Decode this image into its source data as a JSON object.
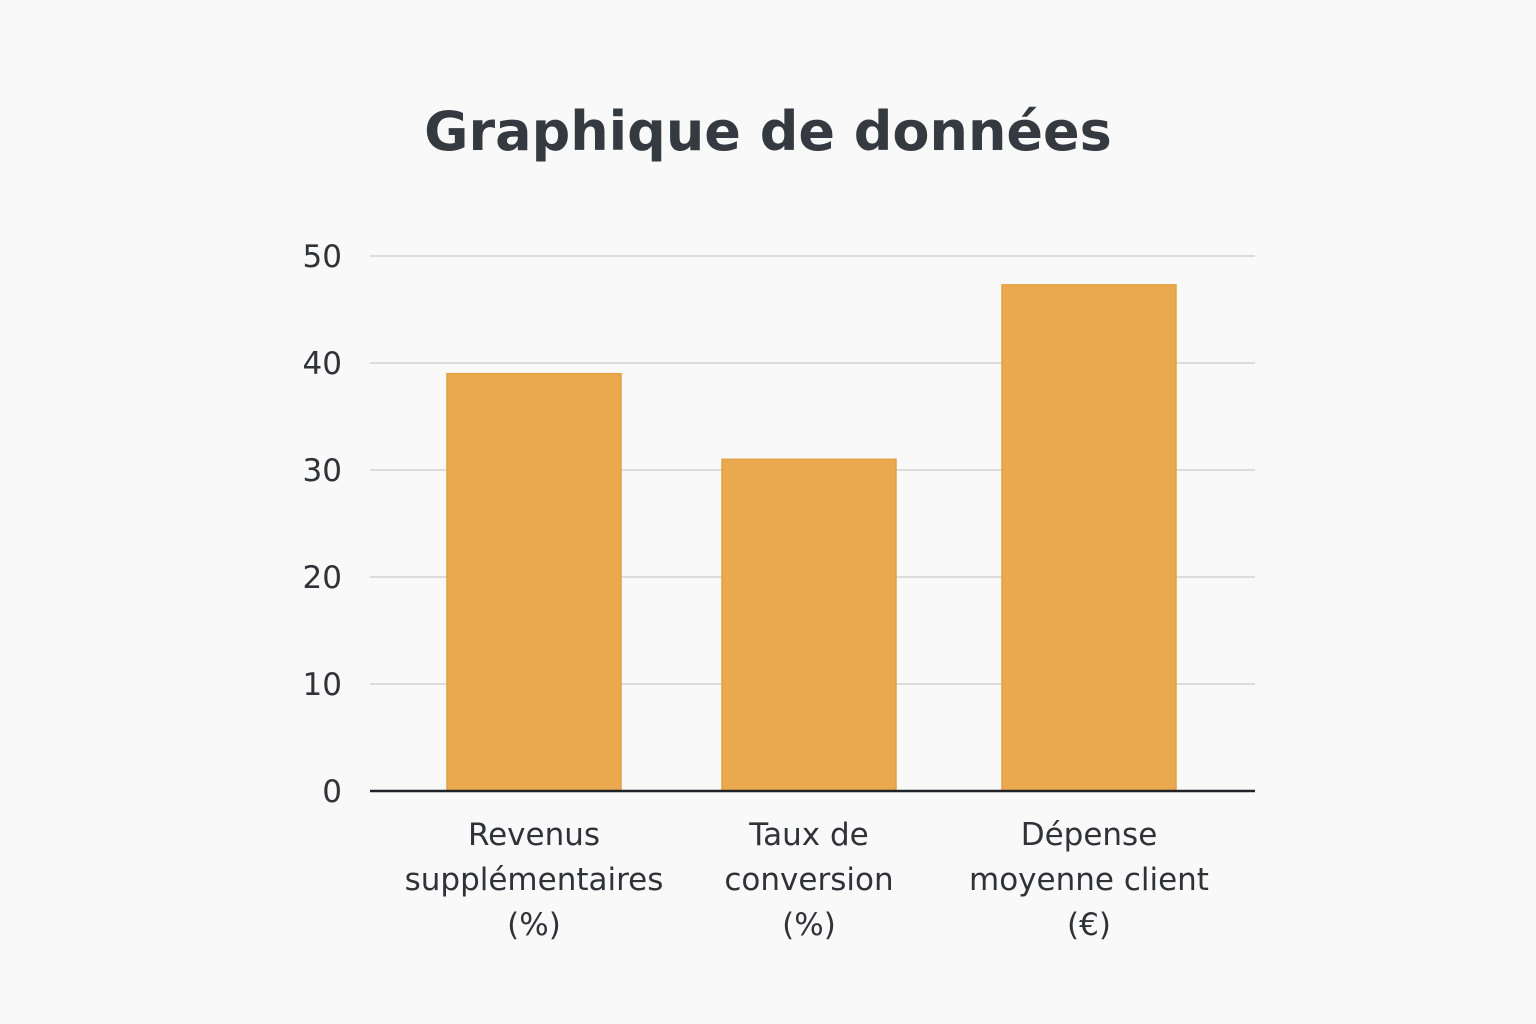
{
  "chart_data": {
    "type": "bar",
    "title": "Graphique de données",
    "categories": [
      [
        "Revenus",
        "supplémentaires",
        "(%)"
      ],
      [
        "Taux de",
        "conversion",
        "(%)"
      ],
      [
        "Dépense",
        "moyenne client",
        "(€)"
      ]
    ],
    "values": [
      39,
      31,
      47.3
    ],
    "yticks": [
      "0",
      "10",
      "20",
      "30",
      "40",
      "50"
    ],
    "ylim": [
      0,
      50
    ],
    "xlabel": "",
    "ylabel": "",
    "grid": true,
    "colors": {
      "bar": "#EBA94F",
      "bar_edge": "#E3A042",
      "grid": "#DCDCDC",
      "axis": "#1f2226",
      "text": "#2f3338"
    }
  }
}
